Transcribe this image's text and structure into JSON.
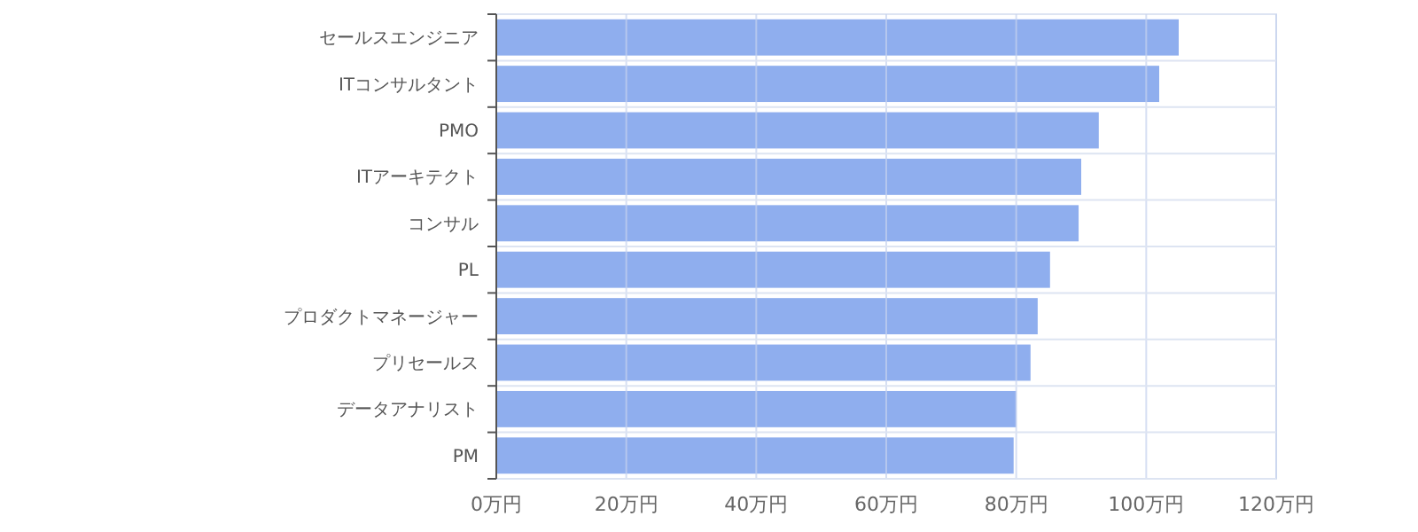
{
  "chart_data": {
    "type": "bar",
    "orientation": "horizontal",
    "categories": [
      "セールスエンジニア",
      "ITコンサルタント",
      "PMO",
      "ITアーキテクト",
      "コンサル",
      "PL",
      "プロダクトマネージャー",
      "プリセールス",
      "データアナリスト",
      "PM"
    ],
    "values": [
      105,
      102,
      92.7,
      90,
      89.6,
      85.2,
      83.3,
      82.2,
      80,
      79.6
    ],
    "color": "#8faeee",
    "xlim": [
      0,
      120
    ],
    "xticks": [
      {
        "value": 0,
        "label": "0万円"
      },
      {
        "value": 20,
        "label": "20万円"
      },
      {
        "value": 40,
        "label": "40万円"
      },
      {
        "value": 60,
        "label": "60万円"
      },
      {
        "value": 80,
        "label": "80万円"
      },
      {
        "value": 100,
        "label": "100万円"
      },
      {
        "value": 120,
        "label": "120万円"
      }
    ],
    "grid": true
  }
}
